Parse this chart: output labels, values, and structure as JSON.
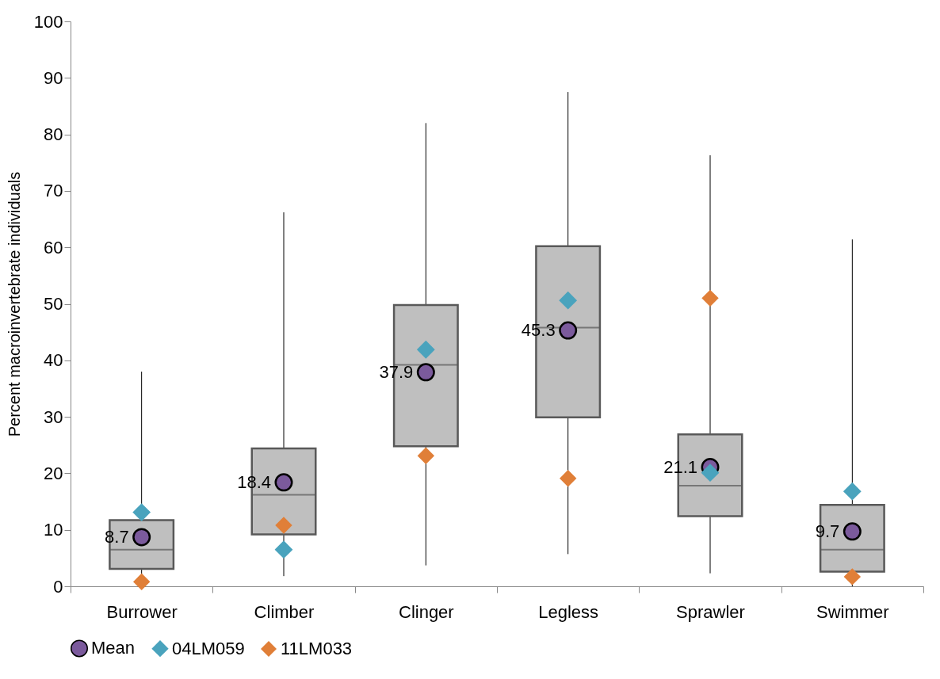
{
  "chart_data": {
    "type": "box",
    "ylabel": "Percent macroinvertebrate individuals",
    "categories": [
      "Burrower",
      "Climber",
      "Clinger",
      "Legless",
      "Sprawler",
      "Swimmer"
    ],
    "ylim": [
      0,
      100
    ],
    "yticks": [
      0,
      10,
      20,
      30,
      40,
      50,
      60,
      70,
      80,
      90,
      100
    ],
    "grid": false,
    "legend": "bottom",
    "series": [
      {
        "type": "box",
        "color": "#bfbfbf",
        "boxes": [
          {
            "low": 0,
            "q1": 3.1,
            "median": 6.5,
            "q3": 11.7,
            "high": 38
          },
          {
            "low": 1.8,
            "q1": 9.2,
            "median": 16.2,
            "q3": 24.4,
            "high": 66.2
          },
          {
            "low": 3.7,
            "q1": 24.8,
            "median": 39.2,
            "q3": 49.8,
            "high": 82
          },
          {
            "low": 5.7,
            "q1": 29.9,
            "median": 45.8,
            "q3": 60.2,
            "high": 87.5
          },
          {
            "low": 2.3,
            "q1": 12.4,
            "median": 17.8,
            "q3": 26.9,
            "high": 76.3
          },
          {
            "low": 0,
            "q1": 2.6,
            "median": 6.5,
            "q3": 14.4,
            "high": 61.4
          }
        ]
      },
      {
        "type": "scatter",
        "name": "Mean",
        "color": "#7b5a9c",
        "marker": "circle",
        "x": [
          "Burrower",
          "Climber",
          "Clinger",
          "Legless",
          "Sprawler",
          "Swimmer"
        ],
        "values": [
          8.7,
          18.4,
          37.9,
          45.3,
          21.1,
          9.7
        ],
        "value_labels": [
          "8.7",
          "18.4",
          "37.9",
          "45.3",
          "21.1",
          "9.7"
        ]
      },
      {
        "type": "scatter",
        "name": "04LM059",
        "color": "#4aa3bd",
        "marker": "diamond",
        "x": [
          "Burrower",
          "Climber",
          "Clinger",
          "Legless",
          "Sprawler",
          "Swimmer"
        ],
        "values": [
          13.1,
          6.5,
          41.9,
          50.6,
          20.1,
          16.8
        ]
      },
      {
        "type": "scatter",
        "name": "11LM033",
        "color": "#e07f38",
        "marker": "diamond",
        "x": [
          "Burrower",
          "Climber",
          "Clinger",
          "Legless",
          "Sprawler",
          "Swimmer"
        ],
        "values": [
          0.8,
          10.8,
          23.1,
          19.1,
          51,
          1.7
        ]
      }
    ]
  }
}
